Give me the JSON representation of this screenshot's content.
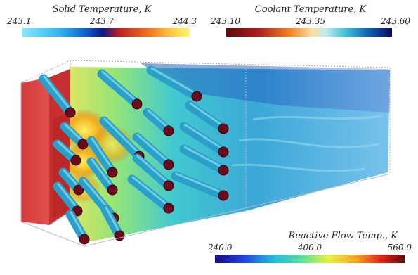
{
  "legends": {
    "solid": {
      "title": "Solid Temperature, K",
      "min": "243.1",
      "mid": "243.7",
      "max": "244.3"
    },
    "coolant": {
      "title": "Coolant Temperature, K",
      "min": "243.10",
      "mid": "243.35",
      "max": "243.60"
    },
    "reactive": {
      "title": "Reactive Flow Temp., K",
      "min": "240.0",
      "mid": "400.0",
      "max": "560.0"
    }
  },
  "colors": {
    "solid_block": "#d84040",
    "pipe": "#2aa8c8",
    "pipe_end": "#6a0a1a",
    "flow_core": "#f0e040",
    "flow_field": "#20a8d0"
  }
}
